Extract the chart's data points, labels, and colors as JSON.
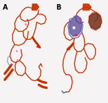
{
  "background_color": "#f5f3f3",
  "panel_a_label": "A",
  "panel_b_label": "B",
  "label_fontsize": 7,
  "label_fontweight": "bold",
  "orange_color": "#c83000",
  "purple_color": "#7766bb",
  "purple_dark": "#554499",
  "brown_color": "#6e2e1a",
  "gray_color": "#c0bcbc",
  "blue_color": "#5577cc",
  "pink_color": "#ee88bb",
  "lw_main": 1.0,
  "lw_thick": 2.5
}
